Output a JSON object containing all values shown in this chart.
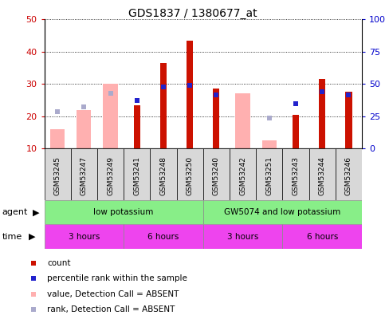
{
  "title": "GDS1837 / 1380677_at",
  "samples": [
    "GSM53245",
    "GSM53247",
    "GSM53249",
    "GSM53241",
    "GSM53248",
    "GSM53250",
    "GSM53240",
    "GSM53242",
    "GSM53251",
    "GSM53243",
    "GSM53244",
    "GSM53246"
  ],
  "count_values": [
    null,
    null,
    null,
    23.5,
    36.5,
    43.5,
    28.5,
    null,
    null,
    20.5,
    31.5,
    27.5
  ],
  "pink_bar_values": [
    16,
    22,
    30,
    null,
    null,
    null,
    null,
    27,
    12.5,
    null,
    null,
    null
  ],
  "blue_sq_values": [
    21.5,
    23.0,
    27.0,
    25.0,
    29.0,
    29.5,
    26.5,
    null,
    19.5,
    24.0,
    27.5,
    26.5
  ],
  "blue_sq_is_absent": [
    true,
    true,
    true,
    false,
    false,
    false,
    false,
    false,
    true,
    false,
    false,
    false
  ],
  "ylim": [
    10,
    50
  ],
  "bar_color_red": "#cc1100",
  "bar_color_pink": "#ffb0b0",
  "blue_sq_color": "#2222cc",
  "light_blue_sq_color": "#aaaacc",
  "ylabel_left_color": "#cc0000",
  "ylabel_right_color": "#0000cc",
  "plot_bg": "#ffffff",
  "agent_color": "#88ee88",
  "time_color": "#ee44ee",
  "legend_items": [
    {
      "label": "count",
      "color": "#cc1100"
    },
    {
      "label": "percentile rank within the sample",
      "color": "#2222cc"
    },
    {
      "label": "value, Detection Call = ABSENT",
      "color": "#ffb0b0"
    },
    {
      "label": "rank, Detection Call = ABSENT",
      "color": "#aaaacc"
    }
  ]
}
